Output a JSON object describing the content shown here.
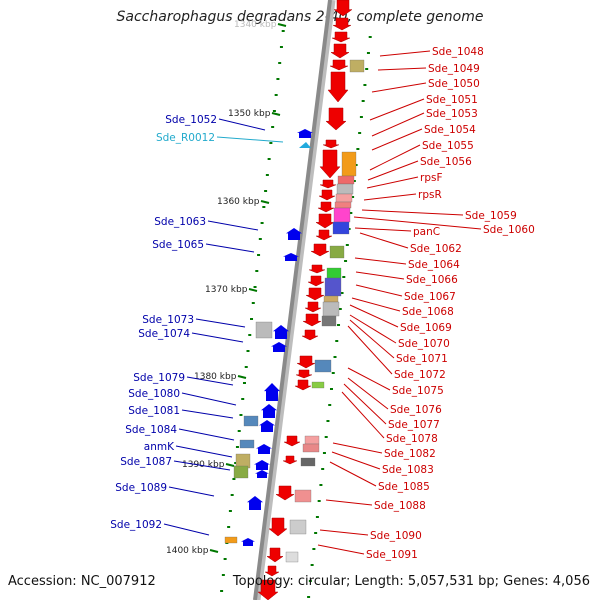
{
  "title": "Saccharophagus degradans 2-40, complete genome",
  "accession": "Accession: NC_007912",
  "summary": "Topology: circular; Length: 5,057,531 bp; Genes: 4,056",
  "colors": {
    "forward_gene": "#0000ee",
    "reverse_gene": "#ee0000",
    "rna_gene": "#22aadd",
    "label_forward": "#0000aa",
    "label_reverse": "#cc0000",
    "label_rna": "#22aacc",
    "tick": "#007700",
    "backbone": "#8a8a8a"
  },
  "scale_labels": [
    "1340 kbp",
    "1350 kbp",
    "1360 kbp",
    "1370 kbp",
    "1380 kbp",
    "1390 kbp",
    "1400 kbp"
  ],
  "genes_forward": [
    "Sde_1052",
    "Sde_1063",
    "Sde_1065",
    "Sde_1073",
    "Sde_1074",
    "Sde_1079",
    "Sde_1080",
    "Sde_1081",
    "Sde_1084",
    "anmK",
    "Sde_1087",
    "Sde_1089",
    "Sde_1092"
  ],
  "genes_rna": [
    "Sde_R0012"
  ],
  "genes_reverse": [
    "Sde_1048",
    "Sde_1049",
    "Sde_1050",
    "Sde_1051",
    "Sde_1053",
    "Sde_1054",
    "Sde_1055",
    "Sde_1056",
    "rpsF",
    "rpsR",
    "Sde_1059",
    "Sde_1060",
    "panC",
    "Sde_1062",
    "Sde_1064",
    "Sde_1066",
    "Sde_1067",
    "Sde_1068",
    "Sde_1069",
    "Sde_1070",
    "Sde_1071",
    "Sde_1072",
    "Sde_1075",
    "Sde_1076",
    "Sde_1077",
    "Sde_1078",
    "Sde_1082",
    "Sde_1083",
    "Sde_1085",
    "Sde_1088",
    "Sde_1090",
    "Sde_1091"
  ]
}
